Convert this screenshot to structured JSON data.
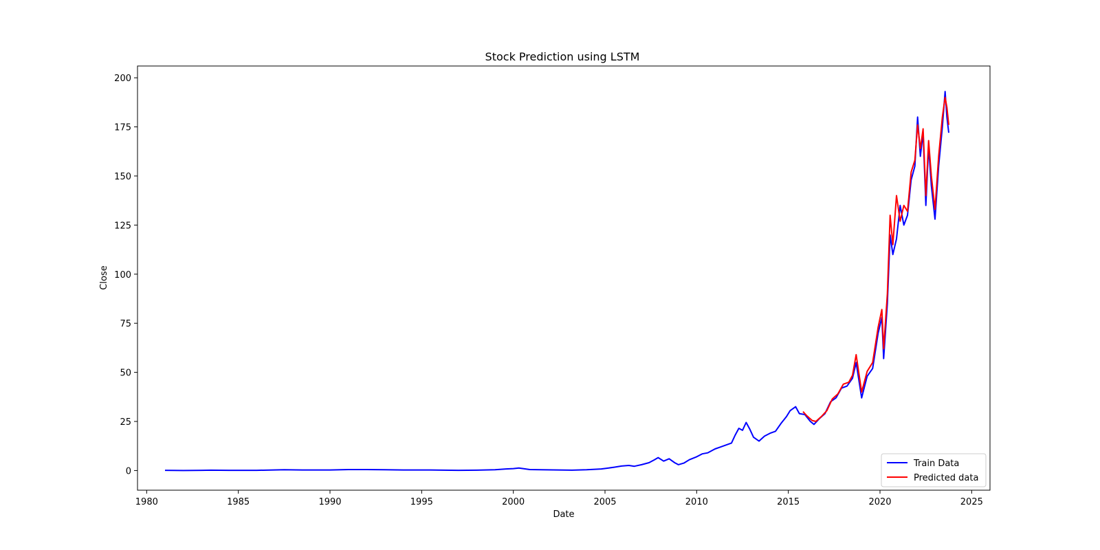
{
  "chart_data": {
    "type": "line",
    "title": "Stock Prediction using LSTM",
    "xlabel": "Date",
    "ylabel": "Close",
    "xlim": [
      1979.5,
      2026
    ],
    "ylim": [
      -10,
      206
    ],
    "xticks": [
      1980,
      1985,
      1990,
      1995,
      2000,
      2005,
      2010,
      2015,
      2020,
      2025
    ],
    "yticks": [
      0,
      25,
      50,
      75,
      100,
      125,
      150,
      175,
      200
    ],
    "grid": false,
    "legend_position": "lower-right",
    "series": [
      {
        "name": "Train Data",
        "color": "#0000ff",
        "points": [
          [
            1981.0,
            0.1
          ],
          [
            1982.0,
            0.0
          ],
          [
            1983.0,
            0.1
          ],
          [
            1983.5,
            0.2
          ],
          [
            1984.5,
            0.1
          ],
          [
            1986.0,
            0.1
          ],
          [
            1987.5,
            0.4
          ],
          [
            1988.5,
            0.3
          ],
          [
            1990.0,
            0.3
          ],
          [
            1991.0,
            0.5
          ],
          [
            1992.0,
            0.5
          ],
          [
            1993.0,
            0.4
          ],
          [
            1994.0,
            0.3
          ],
          [
            1995.5,
            0.3
          ],
          [
            1997.0,
            0.1
          ],
          [
            1998.0,
            0.2
          ],
          [
            1999.0,
            0.4
          ],
          [
            1999.6,
            0.8
          ],
          [
            2000.0,
            1.0
          ],
          [
            2000.3,
            1.3
          ],
          [
            2000.6,
            0.9
          ],
          [
            2000.9,
            0.5
          ],
          [
            2001.5,
            0.4
          ],
          [
            2002.5,
            0.3
          ],
          [
            2003.2,
            0.2
          ],
          [
            2004.0,
            0.4
          ],
          [
            2004.8,
            0.8
          ],
          [
            2005.2,
            1.3
          ],
          [
            2005.5,
            1.7
          ],
          [
            2005.9,
            2.3
          ],
          [
            2006.3,
            2.6
          ],
          [
            2006.6,
            2.2
          ],
          [
            2007.0,
            3.0
          ],
          [
            2007.4,
            4.0
          ],
          [
            2007.7,
            5.5
          ],
          [
            2007.9,
            6.6
          ],
          [
            2008.2,
            4.8
          ],
          [
            2008.5,
            6.0
          ],
          [
            2008.8,
            4.0
          ],
          [
            2009.0,
            3.0
          ],
          [
            2009.3,
            3.8
          ],
          [
            2009.6,
            5.5
          ],
          [
            2010.0,
            7.0
          ],
          [
            2010.3,
            8.5
          ],
          [
            2010.6,
            9.0
          ],
          [
            2011.0,
            11.0
          ],
          [
            2011.3,
            12.0
          ],
          [
            2011.6,
            13.0
          ],
          [
            2011.9,
            14.0
          ],
          [
            2012.1,
            18.0
          ],
          [
            2012.3,
            21.5
          ],
          [
            2012.5,
            20.5
          ],
          [
            2012.7,
            24.5
          ],
          [
            2012.9,
            21.0
          ],
          [
            2013.1,
            17.0
          ],
          [
            2013.4,
            15.0
          ],
          [
            2013.7,
            17.5
          ],
          [
            2014.0,
            19.0
          ],
          [
            2014.3,
            20.0
          ],
          [
            2014.6,
            24.0
          ],
          [
            2014.9,
            27.5
          ],
          [
            2015.1,
            30.5
          ],
          [
            2015.4,
            32.5
          ],
          [
            2015.6,
            29.0
          ],
          [
            2015.9,
            28.5
          ],
          [
            2016.2,
            25.0
          ],
          [
            2016.4,
            23.5
          ],
          [
            2016.7,
            26.5
          ],
          [
            2017.0,
            29.0
          ],
          [
            2017.3,
            35.0
          ],
          [
            2017.6,
            37.0
          ],
          [
            2017.9,
            42.0
          ],
          [
            2018.2,
            43.0
          ],
          [
            2018.5,
            47.0
          ],
          [
            2018.7,
            55.0
          ],
          [
            2019.0,
            37.0
          ],
          [
            2019.3,
            48.0
          ],
          [
            2019.6,
            52.0
          ],
          [
            2019.9,
            70.0
          ],
          [
            2020.1,
            78.0
          ],
          [
            2020.2,
            57.0
          ],
          [
            2020.4,
            85.0
          ],
          [
            2020.55,
            120.0
          ],
          [
            2020.7,
            110.0
          ],
          [
            2020.9,
            118.0
          ],
          [
            2021.1,
            135.0
          ],
          [
            2021.3,
            125.0
          ],
          [
            2021.5,
            130.0
          ],
          [
            2021.7,
            148.0
          ],
          [
            2021.9,
            155.0
          ],
          [
            2022.05,
            180.0
          ],
          [
            2022.2,
            160.0
          ],
          [
            2022.35,
            172.0
          ],
          [
            2022.5,
            135.0
          ],
          [
            2022.65,
            165.0
          ],
          [
            2022.8,
            145.0
          ],
          [
            2023.0,
            128.0
          ],
          [
            2023.2,
            155.0
          ],
          [
            2023.4,
            175.0
          ],
          [
            2023.55,
            193.0
          ],
          [
            2023.65,
            180.0
          ],
          [
            2023.75,
            172.0
          ]
        ]
      },
      {
        "name": "Predicted data",
        "color": "#ff0000",
        "points": [
          [
            2015.8,
            30.0
          ],
          [
            2016.0,
            28.0
          ],
          [
            2016.3,
            25.5
          ],
          [
            2016.5,
            25.0
          ],
          [
            2016.8,
            27.5
          ],
          [
            2017.1,
            30.5
          ],
          [
            2017.4,
            36.5
          ],
          [
            2017.7,
            39.0
          ],
          [
            2018.0,
            44.0
          ],
          [
            2018.3,
            45.0
          ],
          [
            2018.5,
            48.5
          ],
          [
            2018.7,
            59.0
          ],
          [
            2019.0,
            40.0
          ],
          [
            2019.3,
            50.5
          ],
          [
            2019.6,
            55.0
          ],
          [
            2019.9,
            73.0
          ],
          [
            2020.1,
            82.0
          ],
          [
            2020.2,
            62.0
          ],
          [
            2020.4,
            90.0
          ],
          [
            2020.55,
            130.0
          ],
          [
            2020.7,
            115.0
          ],
          [
            2020.9,
            140.0
          ],
          [
            2021.1,
            127.0
          ],
          [
            2021.3,
            135.0
          ],
          [
            2021.5,
            132.0
          ],
          [
            2021.7,
            152.0
          ],
          [
            2021.9,
            158.0
          ],
          [
            2022.05,
            176.0
          ],
          [
            2022.2,
            164.0
          ],
          [
            2022.35,
            174.0
          ],
          [
            2022.5,
            140.0
          ],
          [
            2022.65,
            168.0
          ],
          [
            2022.8,
            150.0
          ],
          [
            2023.0,
            133.0
          ],
          [
            2023.2,
            160.0
          ],
          [
            2023.4,
            180.0
          ],
          [
            2023.55,
            190.0
          ],
          [
            2023.65,
            185.0
          ],
          [
            2023.75,
            176.0
          ]
        ]
      }
    ]
  }
}
